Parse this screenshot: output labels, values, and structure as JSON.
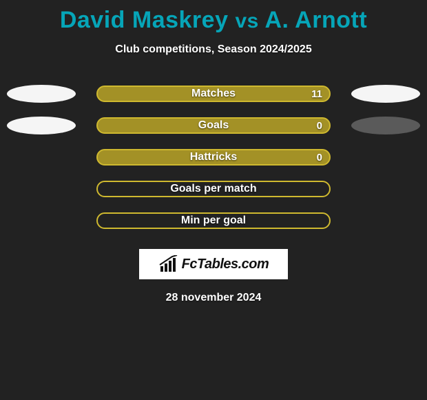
{
  "title": {
    "player1": "David Maskrey",
    "vs": "vs",
    "player2": "A. Arnott",
    "color": "#06a5b8"
  },
  "subtitle": "Club competitions, Season 2024/2025",
  "bar_style": {
    "fill": "#a39126",
    "border": "#cfb92f",
    "empty_fill": "transparent"
  },
  "ellipse_colors": {
    "white": "#f5f5f5",
    "grey": "#5a5a5a"
  },
  "rows": [
    {
      "label": "Matches",
      "value": "11",
      "filled": true,
      "left_ellipse": "white",
      "right_ellipse": "white"
    },
    {
      "label": "Goals",
      "value": "0",
      "filled": true,
      "left_ellipse": "white",
      "right_ellipse": "grey"
    },
    {
      "label": "Hattricks",
      "value": "0",
      "filled": true,
      "left_ellipse": null,
      "right_ellipse": null
    },
    {
      "label": "Goals per match",
      "value": "",
      "filled": false,
      "left_ellipse": null,
      "right_ellipse": null
    },
    {
      "label": "Min per goal",
      "value": "",
      "filled": false,
      "left_ellipse": null,
      "right_ellipse": null
    }
  ],
  "brand": "FcTables.com",
  "date": "28 november 2024",
  "background_color": "#222222"
}
